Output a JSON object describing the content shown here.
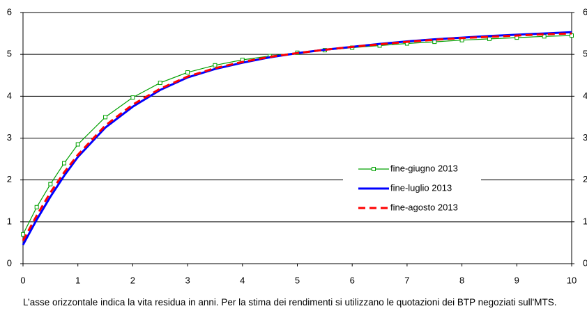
{
  "chart_data": {
    "type": "line",
    "x": [
      0,
      0.25,
      0.5,
      0.75,
      1,
      1.5,
      2,
      2.5,
      3,
      3.5,
      4,
      4.5,
      5,
      5.5,
      6,
      6.5,
      7,
      7.5,
      8,
      8.5,
      9,
      9.5,
      10
    ],
    "series": [
      {
        "name": "fine-giugno 2013",
        "color": "#00a000",
        "marker": "square",
        "values": [
          0.7,
          1.35,
          1.9,
          2.4,
          2.85,
          3.5,
          3.97,
          4.32,
          4.57,
          4.74,
          4.87,
          4.96,
          5.04,
          5.1,
          5.16,
          5.21,
          5.26,
          5.3,
          5.34,
          5.37,
          5.4,
          5.43,
          5.45
        ]
      },
      {
        "name": "fine-luglio 2013",
        "color": "#0000ff",
        "values": [
          0.45,
          1.05,
          1.6,
          2.1,
          2.55,
          3.25,
          3.75,
          4.15,
          4.45,
          4.65,
          4.8,
          4.93,
          5.03,
          5.11,
          5.18,
          5.25,
          5.31,
          5.36,
          5.4,
          5.44,
          5.47,
          5.5,
          5.53
        ]
      },
      {
        "name": "fine-agosto 2013",
        "color": "#ff0000",
        "dash": true,
        "values": [
          0.55,
          1.15,
          1.7,
          2.18,
          2.6,
          3.3,
          3.8,
          4.18,
          4.47,
          4.67,
          4.82,
          4.94,
          5.03,
          5.11,
          5.18,
          5.24,
          5.3,
          5.35,
          5.39,
          5.42,
          5.45,
          5.48,
          5.5
        ]
      }
    ],
    "xlim": [
      0,
      10
    ],
    "xticks": [
      0,
      1,
      2,
      3,
      4,
      5,
      6,
      7,
      8,
      9,
      10
    ],
    "ylim": [
      0,
      6
    ],
    "yticks": [
      0,
      1,
      2,
      3,
      4,
      5,
      6
    ],
    "y2lim": [
      0,
      6
    ],
    "y2ticks": [
      0,
      1,
      2,
      3,
      4,
      5,
      6
    ],
    "grid": true,
    "note": "L’asse orizzontale indica la vita residua in anni. Per la stima dei rendimenti si utilizzano le quotazioni dei BTP negoziati sull'MTS."
  }
}
